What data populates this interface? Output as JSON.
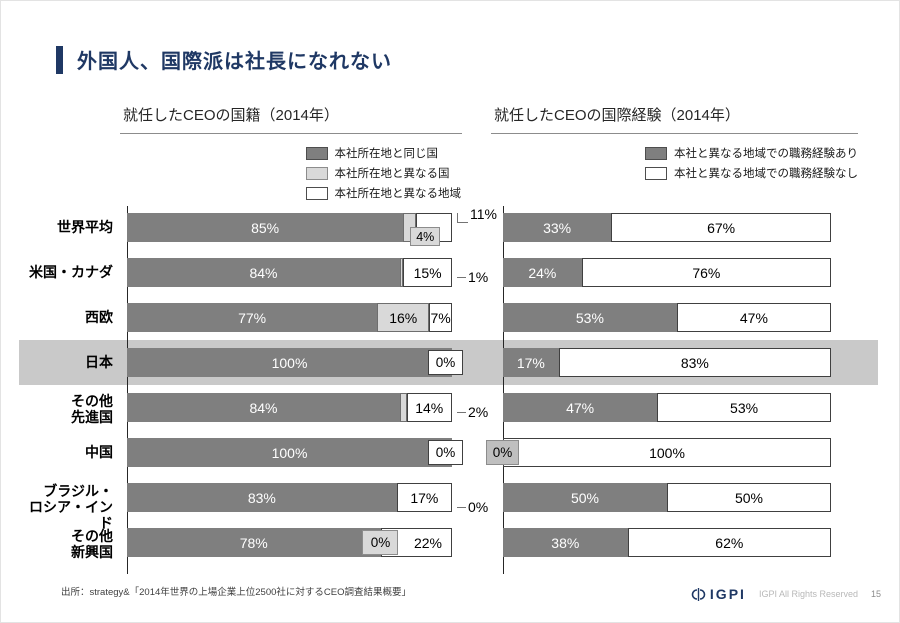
{
  "page_title": "外国人、国際派は社長になれない",
  "highlight_category": "日本",
  "chart_data": [
    {
      "type": "bar",
      "stacked": true,
      "orientation": "horizontal",
      "title": "就任したCEOの国籍（2014年）",
      "unit": "%",
      "xlim": [
        0,
        100
      ],
      "legend": [
        {
          "label": "本社所在地と同じ国",
          "style": "dark",
          "color": "#7f7f7f"
        },
        {
          "label": "本社所在地と異なる国",
          "style": "light",
          "color": "#d9d9d9"
        },
        {
          "label": "本社所在地と異なる地域",
          "style": "white",
          "color": "#ffffff"
        }
      ],
      "categories": [
        "世界平均",
        "米国・カナダ",
        "西欧",
        "日本",
        "その他\n先進国",
        "中国",
        "ブラジル・\nロシア・インド",
        "その他\n新興国"
      ],
      "rows": [
        {
          "values": [
            85,
            4,
            11
          ],
          "labels": [
            "85%",
            "4%",
            "11%"
          ],
          "placements": [
            "in",
            "below",
            "seg"
          ],
          "outside": {
            "text": "11%",
            "valign": "top"
          }
        },
        {
          "values": [
            84,
            1,
            15
          ],
          "labels": [
            "84%",
            "1%",
            "15%"
          ],
          "placements": [
            "in",
            "sliver",
            "in"
          ],
          "outside": {
            "text": "1%",
            "valign": "mid"
          }
        },
        {
          "values": [
            77,
            16,
            7
          ],
          "labels": [
            "77%",
            "16%",
            "7%"
          ],
          "placements": [
            "in",
            "in",
            "in"
          ]
        },
        {
          "values": [
            100,
            0,
            0
          ],
          "labels": [
            "100%",
            "0%",
            "0%"
          ],
          "placements": [
            "in",
            "none",
            "none"
          ],
          "endbox": {
            "text": "0%"
          }
        },
        {
          "values": [
            84,
            2,
            14
          ],
          "labels": [
            "84%",
            "2%",
            "14%"
          ],
          "placements": [
            "in",
            "sliver",
            "in"
          ],
          "outside": {
            "text": "2%",
            "valign": "mid"
          }
        },
        {
          "values": [
            100,
            0,
            0
          ],
          "labels": [
            "100%",
            "0%",
            "0%"
          ],
          "placements": [
            "in",
            "none",
            "none"
          ],
          "endbox": {
            "text": "0%"
          }
        },
        {
          "values": [
            83,
            0,
            17
          ],
          "labels": [
            "83%",
            "0%",
            "17%"
          ],
          "placements": [
            "in",
            "none",
            "in"
          ],
          "outside": {
            "text": "0%",
            "valign": "low"
          }
        },
        {
          "values": [
            78,
            0,
            22
          ],
          "labels": [
            "78%",
            "0%",
            "22%"
          ],
          "placements": [
            "in",
            "midbox",
            "in-right"
          ]
        }
      ]
    },
    {
      "type": "bar",
      "stacked": true,
      "orientation": "horizontal",
      "title": "就任したCEOの国際経験（2014年）",
      "unit": "%",
      "xlim": [
        0,
        100
      ],
      "legend": [
        {
          "label": "本社と異なる地域での職務経験あり",
          "style": "dark",
          "color": "#7f7f7f"
        },
        {
          "label": "本社と異なる地域での職務経験なし",
          "style": "white",
          "color": "#ffffff"
        }
      ],
      "categories": [
        "世界平均",
        "米国・カナダ",
        "西欧",
        "日本",
        "その他\n先進国",
        "中国",
        "ブラジル・\nロシア・インド",
        "その他\n新興国"
      ],
      "rows": [
        {
          "values": [
            33,
            67
          ],
          "labels": [
            "33%",
            "67%"
          ]
        },
        {
          "values": [
            24,
            76
          ],
          "labels": [
            "24%",
            "76%"
          ]
        },
        {
          "values": [
            53,
            47
          ],
          "labels": [
            "53%",
            "47%"
          ]
        },
        {
          "values": [
            17,
            83
          ],
          "labels": [
            "17%",
            "83%"
          ]
        },
        {
          "values": [
            47,
            53
          ],
          "labels": [
            "47%",
            "53%"
          ]
        },
        {
          "values": [
            0,
            100
          ],
          "labels": [
            "0%",
            "100%"
          ],
          "leftbox": {
            "text": "0%"
          }
        },
        {
          "values": [
            50,
            50
          ],
          "labels": [
            "50%",
            "50%"
          ]
        },
        {
          "values": [
            38,
            62
          ],
          "labels": [
            "38%",
            "62%"
          ]
        }
      ]
    }
  ],
  "footer": {
    "source": "出所：strategy&「2014年世界の上場企業上位2500社に対するCEO調査結果概要」",
    "logo_text": "IGPI",
    "rights": "IGPI All Rights Reserved",
    "page_number": "15"
  },
  "colors": {
    "accent_navy": "#1f3864",
    "bar_dark": "#7f7f7f",
    "bar_light": "#d9d9d9",
    "bar_white": "#ffffff",
    "highlight_band": "#c9c9c9"
  }
}
